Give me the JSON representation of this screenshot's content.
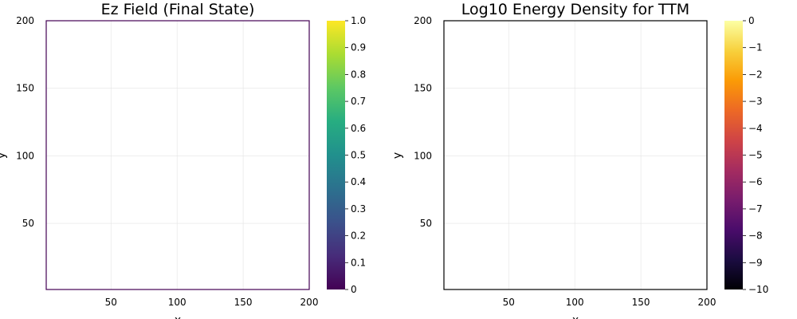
{
  "chart_data": [
    {
      "type": "heatmap",
      "title": "Ez Field (Final State)",
      "xlabel": "x",
      "ylabel": "y",
      "xlim": [
        1,
        200
      ],
      "ylim": [
        1,
        200
      ],
      "xticks": [
        50,
        100,
        150,
        200
      ],
      "yticks": [
        50,
        100,
        150,
        200
      ],
      "grid": true,
      "values": [],
      "colorbar": {
        "colormap": "viridis",
        "range": [
          0,
          1
        ],
        "ticks": [
          "0",
          "0.1",
          "0.2",
          "0.3",
          "0.4",
          "0.5",
          "0.6",
          "0.7",
          "0.8",
          "0.9",
          "1.0"
        ],
        "colors": [
          "#440154",
          "#472c7a",
          "#3b518b",
          "#2c718e",
          "#21908d",
          "#27ad81",
          "#5cc863",
          "#aadc32",
          "#fde725"
        ]
      }
    },
    {
      "type": "heatmap",
      "title": "Log10 Energy Density for TTM",
      "xlabel": "x",
      "ylabel": "y",
      "xlim": [
        1,
        200
      ],
      "ylim": [
        1,
        200
      ],
      "xticks": [
        50,
        100,
        150,
        200
      ],
      "yticks": [
        50,
        100,
        150,
        200
      ],
      "grid": true,
      "values": [],
      "colorbar": {
        "colormap": "inferno",
        "range": [
          -10,
          0
        ],
        "ticks": [
          "−10",
          "−9",
          "−8",
          "−7",
          "−6",
          "−5",
          "−4",
          "−3",
          "−2",
          "−1",
          "0"
        ],
        "colors": [
          "#000004",
          "#1b0c41",
          "#4a0c6b",
          "#781c6d",
          "#a52c60",
          "#cf4446",
          "#ed6925",
          "#fb9b06",
          "#f7d13d",
          "#fcffa4"
        ]
      }
    }
  ]
}
